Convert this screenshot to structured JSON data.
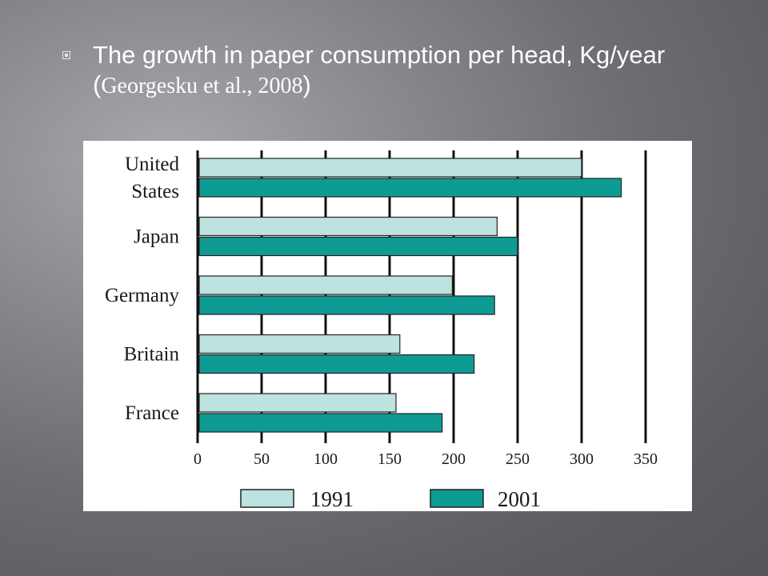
{
  "slide": {
    "title_main": "The growth in paper consumption per head, Kg/year (",
    "title_cite": "Georgesku et al., 2008",
    "title_end": ")",
    "bullet_icon": "square-bullet-icon"
  },
  "chart_data": {
    "type": "bar",
    "orientation": "horizontal",
    "categories": [
      [
        "United",
        "States"
      ],
      [
        "Japan"
      ],
      [
        "Germany"
      ],
      [
        "Britain"
      ],
      [
        "France"
      ]
    ],
    "series": [
      {
        "name": "1991",
        "values": [
          300,
          234,
          199,
          158,
          155
        ],
        "color": "#bde3e1"
      },
      {
        "name": "2001",
        "values": [
          331,
          250,
          232,
          216,
          191
        ],
        "color": "#0e9b94"
      }
    ],
    "x_ticks": [
      "0",
      "50",
      "100",
      "150",
      "200",
      "250",
      "300",
      "350"
    ],
    "xlim": [
      0,
      350
    ],
    "grid": true,
    "legend_position": "bottom"
  }
}
